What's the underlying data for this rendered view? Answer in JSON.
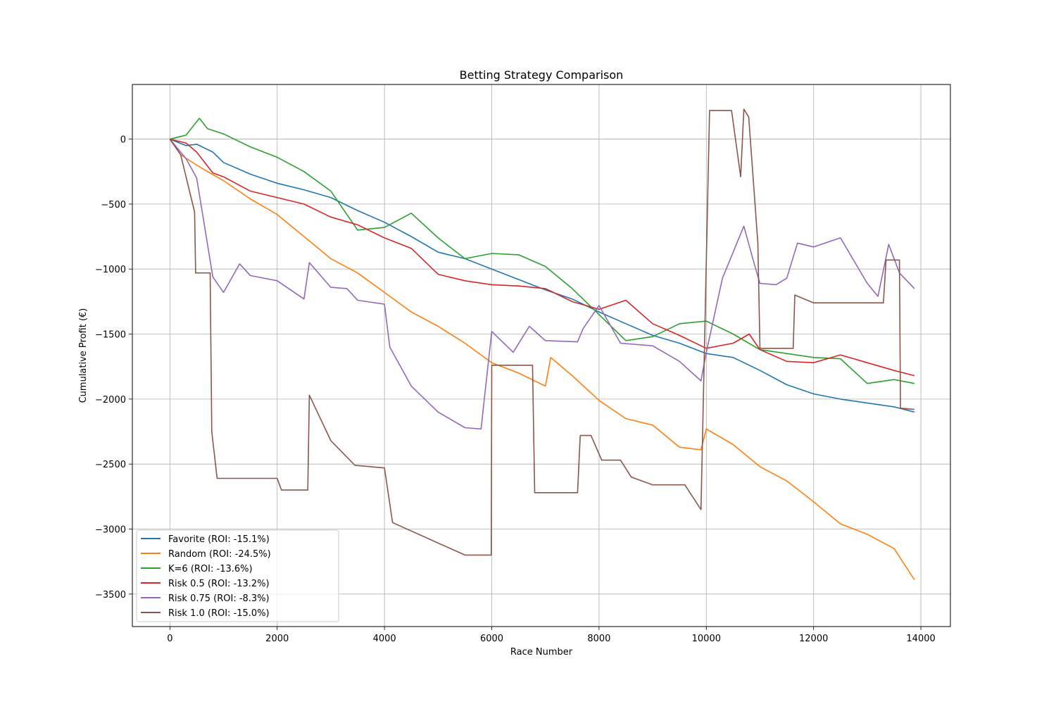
{
  "chart_data": {
    "type": "line",
    "title": "Betting Strategy Comparison",
    "xlabel": "Race Number",
    "ylabel": "Cumulative Profit (€)",
    "xlim": [
      -700,
      14550
    ],
    "ylim": [
      -3750,
      420
    ],
    "x_ticks": [
      0,
      2000,
      4000,
      6000,
      8000,
      10000,
      12000,
      14000
    ],
    "x_tick_labels": [
      "0",
      "2000",
      "4000",
      "6000",
      "8000",
      "10000",
      "12000",
      "14000"
    ],
    "y_ticks": [
      0,
      -500,
      -1000,
      -1500,
      -2000,
      -2500,
      -3000,
      -3500
    ],
    "y_tick_labels": [
      "0",
      "−500",
      "−1000",
      "−1500",
      "−2000",
      "−2500",
      "−3000",
      "−3500"
    ],
    "grid": true,
    "legend_position": "lower-left",
    "series": [
      {
        "name": "Favorite (ROI: -15.1%)",
        "color": "#1f77b4",
        "x": [
          0,
          300,
          500,
          800,
          1000,
          1500,
          2000,
          2500,
          3000,
          3500,
          4000,
          4500,
          5000,
          5500,
          6000,
          6500,
          7000,
          7500,
          8000,
          8500,
          9000,
          9500,
          10000,
          10500,
          11000,
          11500,
          12000,
          12500,
          13000,
          13500,
          13880
        ],
        "y": [
          0,
          -50,
          -40,
          -100,
          -180,
          -270,
          -340,
          -390,
          -450,
          -550,
          -640,
          -750,
          -870,
          -920,
          -1000,
          -1080,
          -1160,
          -1230,
          -1330,
          -1420,
          -1510,
          -1570,
          -1650,
          -1680,
          -1780,
          -1890,
          -1960,
          -2000,
          -2030,
          -2060,
          -2100
        ]
      },
      {
        "name": "Random (ROI: -24.5%)",
        "color": "#ff7f0e",
        "x": [
          0,
          200,
          500,
          700,
          1000,
          1500,
          2000,
          2500,
          3000,
          3500,
          4000,
          4500,
          5000,
          5500,
          6000,
          6500,
          7000,
          7100,
          7500,
          8000,
          8500,
          9000,
          9500,
          9900,
          10000,
          10500,
          11000,
          11500,
          12000,
          12500,
          13000,
          13500,
          13880
        ],
        "y": [
          0,
          -120,
          -200,
          -250,
          -320,
          -460,
          -580,
          -750,
          -920,
          -1030,
          -1180,
          -1330,
          -1440,
          -1570,
          -1720,
          -1800,
          -1900,
          -1680,
          -1820,
          -2010,
          -2150,
          -2200,
          -2370,
          -2390,
          -2230,
          -2350,
          -2520,
          -2630,
          -2790,
          -2960,
          -3040,
          -3150,
          -3390
        ]
      },
      {
        "name": "K=6 (ROI: -13.6%)",
        "color": "#2ca02c",
        "x": [
          0,
          300,
          550,
          700,
          1000,
          1500,
          2000,
          2500,
          3000,
          3500,
          4000,
          4500,
          5000,
          5500,
          6000,
          6500,
          7000,
          7500,
          8000,
          8500,
          9000,
          9500,
          10000,
          10500,
          11000,
          11500,
          12000,
          12500,
          13000,
          13500,
          13880
        ],
        "y": [
          0,
          30,
          160,
          80,
          40,
          -60,
          -140,
          -250,
          -400,
          -700,
          -680,
          -570,
          -760,
          -920,
          -880,
          -890,
          -980,
          -1150,
          -1350,
          -1550,
          -1520,
          -1420,
          -1400,
          -1500,
          -1620,
          -1650,
          -1680,
          -1690,
          -1880,
          -1850,
          -1880
        ]
      },
      {
        "name": "Risk 0.5 (ROI: -13.2%)",
        "color": "#d62728",
        "x": [
          0,
          300,
          500,
          800,
          1000,
          1500,
          2000,
          2500,
          3000,
          3500,
          4000,
          4500,
          5000,
          5500,
          6000,
          6500,
          7000,
          7500,
          8000,
          8500,
          9000,
          9500,
          10000,
          10500,
          10800,
          11000,
          11500,
          12000,
          12500,
          13000,
          13500,
          13880
        ],
        "y": [
          0,
          -30,
          -100,
          -260,
          -290,
          -400,
          -450,
          -500,
          -600,
          -660,
          -760,
          -840,
          -1040,
          -1090,
          -1120,
          -1130,
          -1150,
          -1250,
          -1310,
          -1240,
          -1420,
          -1510,
          -1610,
          -1570,
          -1500,
          -1620,
          -1710,
          -1720,
          -1660,
          -1720,
          -1780,
          -1820
        ]
      },
      {
        "name": "Risk 0.75 (ROI: -8.3%)",
        "color": "#9467bd",
        "x": [
          0,
          300,
          500,
          800,
          1000,
          1300,
          1500,
          2000,
          2500,
          2600,
          3000,
          3300,
          3500,
          4000,
          4100,
          4500,
          5000,
          5500,
          5800,
          6000,
          6400,
          6700,
          7000,
          7600,
          7700,
          8000,
          8400,
          9000,
          9500,
          9900,
          10000,
          10300,
          10700,
          10900,
          11000,
          11300,
          11500,
          11700,
          12000,
          12500,
          13000,
          13200,
          13400,
          13600,
          13880
        ],
        "y": [
          0,
          -150,
          -300,
          -1060,
          -1180,
          -960,
          -1050,
          -1090,
          -1230,
          -950,
          -1140,
          -1150,
          -1240,
          -1270,
          -1600,
          -1900,
          -2100,
          -2220,
          -2230,
          -1480,
          -1640,
          -1440,
          -1550,
          -1560,
          -1460,
          -1280,
          -1570,
          -1590,
          -1710,
          -1860,
          -1640,
          -1070,
          -670,
          -970,
          -1110,
          -1120,
          -1070,
          -800,
          -830,
          -760,
          -1110,
          -1210,
          -810,
          -1030,
          -1150
        ]
      },
      {
        "name": "Risk 1.0 (ROI: -15.0%)",
        "color": "#8c564b",
        "x": [
          0,
          200,
          460,
          480,
          750,
          780,
          880,
          1200,
          2000,
          2080,
          2570,
          2600,
          3000,
          3450,
          4000,
          4150,
          5500,
          5990,
          6000,
          6760,
          6800,
          7600,
          7650,
          7850,
          8050,
          8400,
          8600,
          9000,
          9600,
          9900,
          10060,
          10470,
          10640,
          10700,
          10790,
          10960,
          11000,
          11620,
          11650,
          12000,
          13300,
          13350,
          13600,
          13620,
          13880
        ],
        "y": [
          0,
          -120,
          -560,
          -1030,
          -1030,
          -2250,
          -2610,
          -2610,
          -2610,
          -2700,
          -2700,
          -1970,
          -2320,
          -2510,
          -2530,
          -2950,
          -3200,
          -3200,
          -1740,
          -1740,
          -2720,
          -2720,
          -2280,
          -2280,
          -2470,
          -2470,
          -2600,
          -2660,
          -2660,
          -2850,
          220,
          220,
          -290,
          230,
          170,
          -800,
          -1610,
          -1610,
          -1200,
          -1260,
          -1260,
          -930,
          -930,
          -2070,
          -2080
        ]
      }
    ]
  }
}
